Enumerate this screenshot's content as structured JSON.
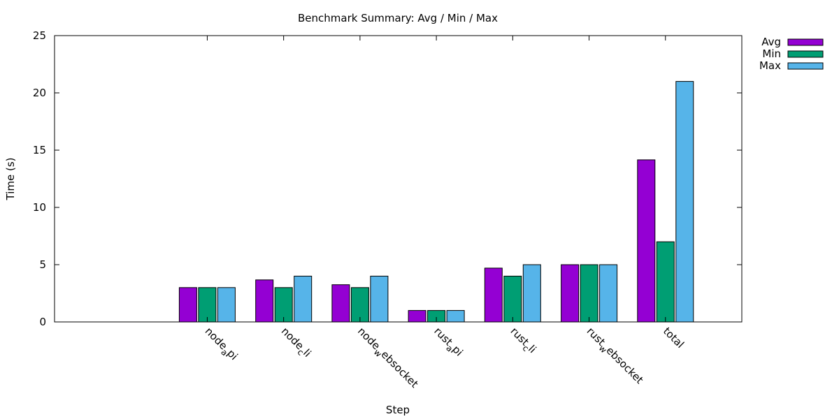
{
  "chart_data": {
    "type": "bar",
    "title": "Benchmark Summary: Avg / Min / Max",
    "xlabel": "Step",
    "ylabel": "Time (s)",
    "ylim": [
      0,
      25
    ],
    "yticks": [
      0,
      5,
      10,
      15,
      20,
      25
    ],
    "grid": false,
    "legend_position": "top-right-outside",
    "leading_empty_slots": 1,
    "categories": [
      "node_api",
      "node_cli",
      "node_websocket",
      "rust_api",
      "rust_cli",
      "rust_websocket",
      "total"
    ],
    "category_display": [
      {
        "base": "node",
        "sub": "a",
        "rest": "pi"
      },
      {
        "base": "node",
        "sub": "c",
        "rest": "li"
      },
      {
        "base": "node",
        "sub": "w",
        "rest": "ebsocket"
      },
      {
        "base": "rust",
        "sub": "a",
        "rest": "pi"
      },
      {
        "base": "rust",
        "sub": "c",
        "rest": "li"
      },
      {
        "base": "rust",
        "sub": "w",
        "rest": "ebsocket"
      },
      {
        "base": "total",
        "sub": "",
        "rest": ""
      }
    ],
    "series": [
      {
        "name": "Avg",
        "color": "#9400d3",
        "values": [
          3,
          3.67,
          3.25,
          1,
          4.7,
          5,
          14.15
        ]
      },
      {
        "name": "Min",
        "color": "#009e73",
        "values": [
          3,
          3,
          3,
          1,
          4,
          5,
          7
        ]
      },
      {
        "name": "Max",
        "color": "#56b4e9",
        "values": [
          3,
          4,
          4,
          1,
          5,
          5,
          21
        ]
      }
    ]
  }
}
